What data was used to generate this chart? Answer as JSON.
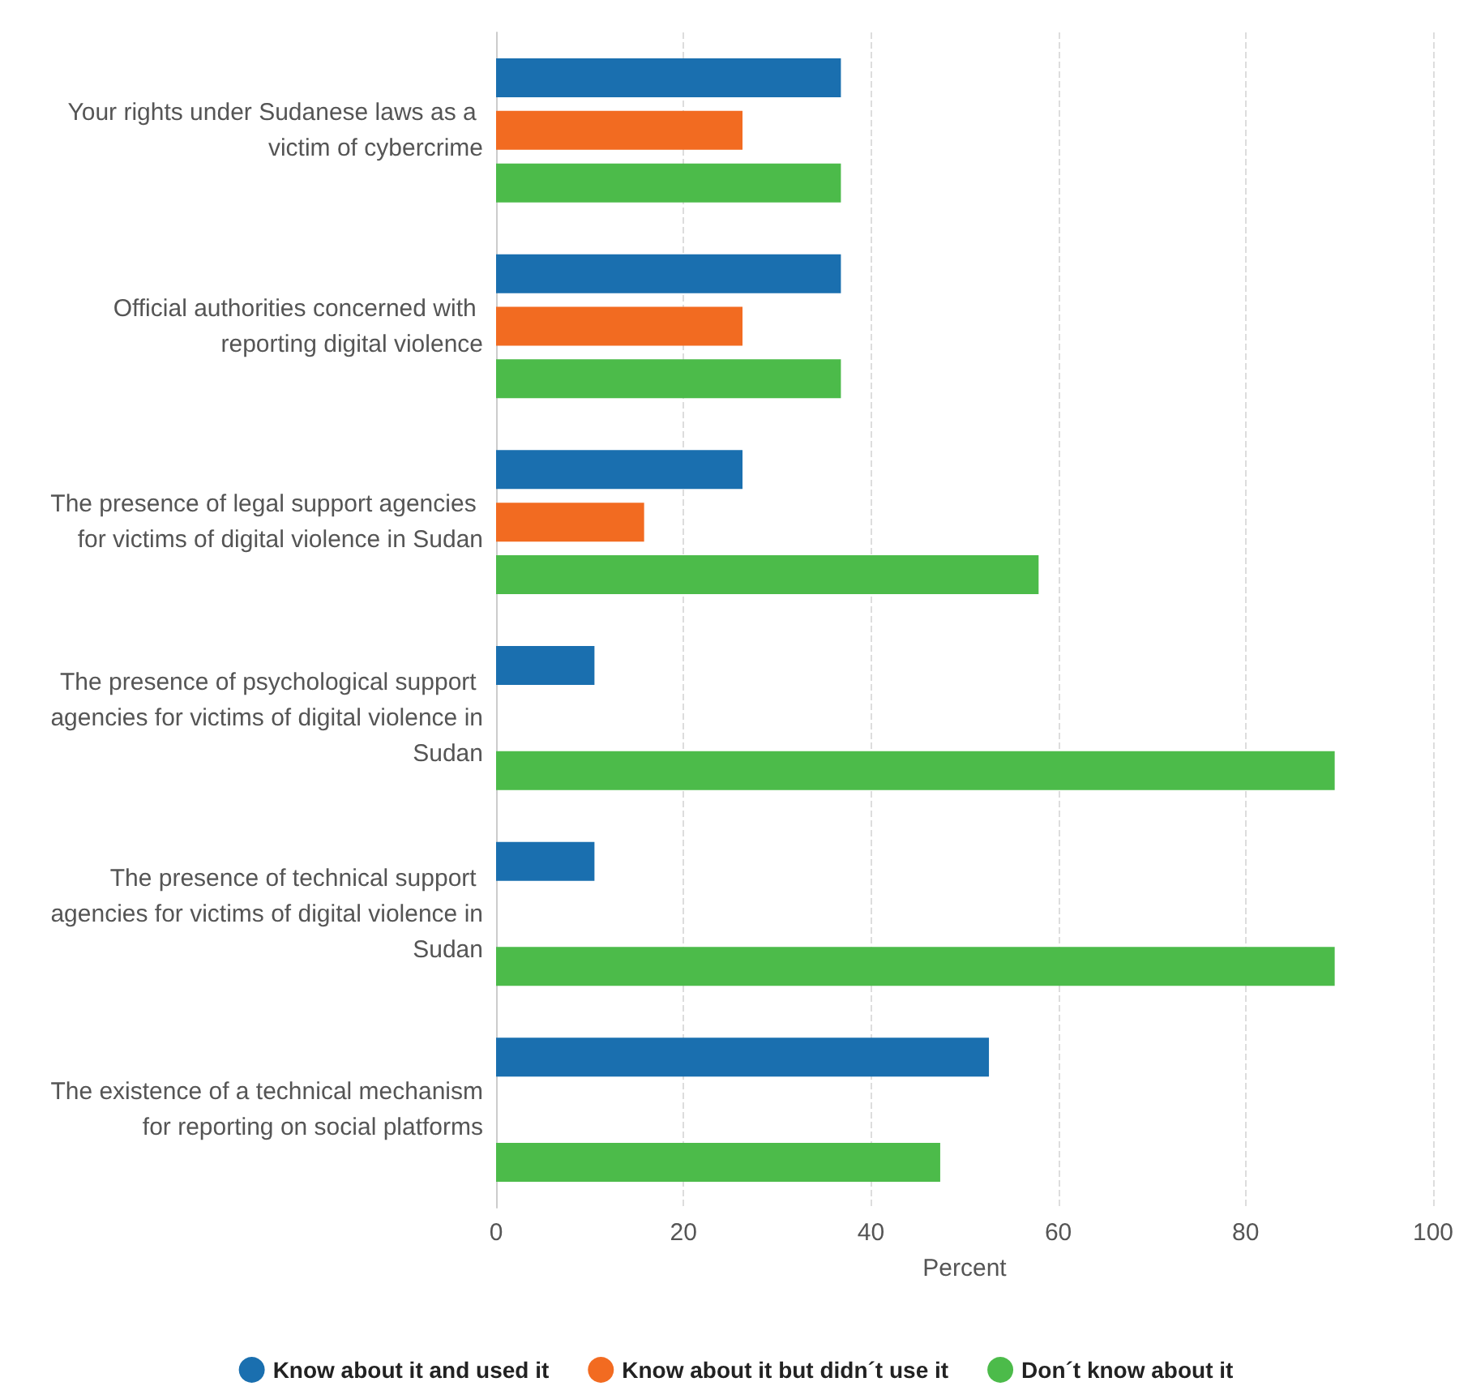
{
  "chart_data": {
    "type": "bar",
    "orientation": "horizontal",
    "xlabel": "Percent",
    "categories": [
      "Your rights under Sudanese laws as a victim of cybercrime",
      "Official authorities concerned with reporting digital violence",
      "The presence of legal support agencies for victims of digital violence in Sudan",
      "The presence of psychological support agencies for victims of digital violence in Sudan",
      "The presence of technical support agencies for victims of digital violence in Sudan",
      "The existence of a technical mechanism for reporting on social platforms"
    ],
    "series": [
      {
        "name": "Know about it and used it",
        "color": "#1a6faf",
        "values": [
          36.8,
          36.8,
          26.3,
          10.5,
          10.5,
          52.6
        ]
      },
      {
        "name": "Know about it but didn´t use it",
        "color": "#f26b21",
        "values": [
          26.3,
          26.3,
          15.8,
          null,
          null,
          null
        ]
      },
      {
        "name": "Don´t know about it",
        "color": "#4cbb4a",
        "values": [
          36.8,
          36.8,
          57.9,
          89.5,
          89.5,
          47.4
        ]
      }
    ],
    "xlim": [
      0,
      100
    ],
    "xticks": [
      0,
      20,
      40,
      60,
      80,
      100
    ],
    "grid": "x",
    "legend": "bottom"
  }
}
